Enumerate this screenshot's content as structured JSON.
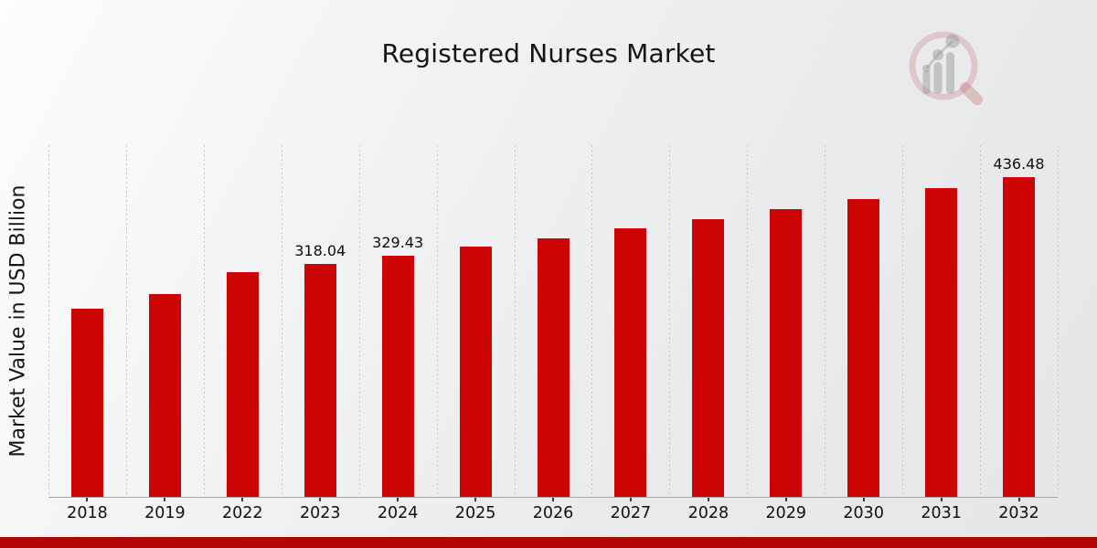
{
  "page": {
    "title": "Registered Nurses Market"
  },
  "chart_data": {
    "type": "bar",
    "title": "Registered Nurses Market",
    "xlabel": "",
    "ylabel": "Market Value in USD Billion",
    "categories": [
      "2018",
      "2019",
      "2022",
      "2023",
      "2024",
      "2025",
      "2026",
      "2027",
      "2028",
      "2029",
      "2030",
      "2031",
      "2032"
    ],
    "values": [
      257.0,
      277.0,
      306.9,
      318.04,
      329.43,
      341.2,
      353.4,
      366.1,
      379.2,
      392.8,
      406.8,
      421.4,
      436.48
    ],
    "data_labels": [
      "",
      "",
      "",
      "318.04",
      "329.43",
      "",
      "",
      "",
      "",
      "",
      "",
      "",
      "436.48"
    ],
    "ylim": [
      0,
      480
    ],
    "grid": "vertical-dashed",
    "legend": "none",
    "bar_color": "#cc0404"
  },
  "colors": {
    "bar": "#cc0404",
    "bottom_stripe": "#b40606",
    "gridline": "#c5c6c8",
    "axis_line": "#a4a5a7",
    "background_top_left": "#fdfdfd",
    "background_bottom_right": "#e5e6e8",
    "text": "#111111",
    "watermark_pink": "rgba(198,118,118,0.30)",
    "watermark_gray": "rgba(148,149,154,0.45)"
  }
}
